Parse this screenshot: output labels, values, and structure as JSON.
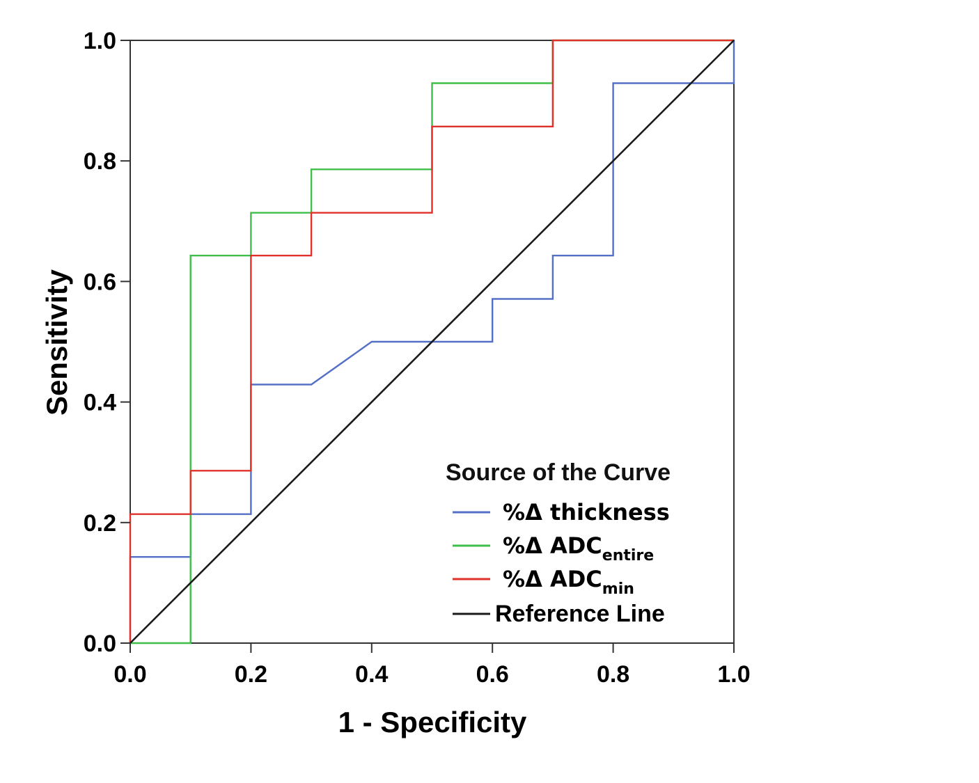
{
  "chart_data": {
    "type": "line",
    "xlabel": "1 - Specificity",
    "ylabel": "Sensitivity",
    "xlim": [
      0,
      1
    ],
    "ylim": [
      0,
      1
    ],
    "x_ticks": [
      "0.0",
      "0.2",
      "0.4",
      "0.6",
      "0.8",
      "1.0"
    ],
    "y_ticks": [
      "0.0",
      "0.2",
      "0.4",
      "0.6",
      "0.8",
      "1.0"
    ],
    "grid": false,
    "legend": {
      "title": "Source of the Curve",
      "placement": "bottom-right inside plot"
    },
    "series": [
      {
        "name": "%Δ thickness",
        "name_main": "%Δ thickness",
        "name_sub": "",
        "color": "#5470c6",
        "points": [
          [
            0,
            0
          ],
          [
            0,
            0.143
          ],
          [
            0.1,
            0.143
          ],
          [
            0.1,
            0.214
          ],
          [
            0.2,
            0.214
          ],
          [
            0.2,
            0.429
          ],
          [
            0.3,
            0.429
          ],
          [
            0.4,
            0.5
          ],
          [
            0.6,
            0.5
          ],
          [
            0.6,
            0.571
          ],
          [
            0.7,
            0.571
          ],
          [
            0.7,
            0.643
          ],
          [
            0.8,
            0.643
          ],
          [
            0.8,
            0.929
          ],
          [
            1.0,
            0.929
          ],
          [
            1.0,
            1.0
          ]
        ]
      },
      {
        "name": "%Δ ADCentire",
        "name_main": "%Δ ADC",
        "name_sub": "entire",
        "color": "#3fbf4a",
        "points": [
          [
            0,
            0
          ],
          [
            0.1,
            0
          ],
          [
            0.1,
            0.643
          ],
          [
            0.2,
            0.643
          ],
          [
            0.2,
            0.714
          ],
          [
            0.3,
            0.714
          ],
          [
            0.3,
            0.786
          ],
          [
            0.5,
            0.786
          ],
          [
            0.5,
            0.929
          ],
          [
            0.7,
            0.929
          ],
          [
            0.7,
            1.0
          ],
          [
            1.0,
            1.0
          ]
        ]
      },
      {
        "name": "%Δ ADCmin",
        "name_main": "%Δ ADC",
        "name_sub": "min",
        "color": "#e0302a",
        "points": [
          [
            0,
            0
          ],
          [
            0,
            0.214
          ],
          [
            0.1,
            0.214
          ],
          [
            0.1,
            0.286
          ],
          [
            0.2,
            0.286
          ],
          [
            0.2,
            0.643
          ],
          [
            0.3,
            0.643
          ],
          [
            0.3,
            0.714
          ],
          [
            0.5,
            0.714
          ],
          [
            0.5,
            0.857
          ],
          [
            0.7,
            0.857
          ],
          [
            0.7,
            1.0
          ],
          [
            1.0,
            1.0
          ]
        ]
      },
      {
        "name": "Reference Line",
        "name_main": "Reference Line",
        "name_sub": "",
        "color": "#1a1a1a",
        "points": [
          [
            0,
            0
          ],
          [
            1,
            1
          ]
        ]
      }
    ]
  }
}
